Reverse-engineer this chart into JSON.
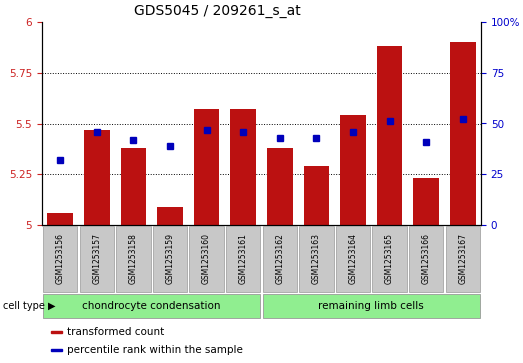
{
  "title": "GDS5045 / 209261_s_at",
  "samples": [
    "GSM1253156",
    "GSM1253157",
    "GSM1253158",
    "GSM1253159",
    "GSM1253160",
    "GSM1253161",
    "GSM1253162",
    "GSM1253163",
    "GSM1253164",
    "GSM1253165",
    "GSM1253166",
    "GSM1253167"
  ],
  "red_values": [
    5.06,
    5.47,
    5.38,
    5.09,
    5.57,
    5.57,
    5.38,
    5.29,
    5.54,
    5.88,
    5.23,
    5.9
  ],
  "blue_values_pct": [
    32,
    46,
    42,
    39,
    47,
    46,
    43,
    43,
    46,
    51,
    41,
    52
  ],
  "ylim_left": [
    5.0,
    6.0
  ],
  "ylim_right": [
    0,
    100
  ],
  "yticks_left": [
    5.0,
    5.25,
    5.5,
    5.75,
    6.0
  ],
  "yticks_right": [
    0,
    25,
    50,
    75,
    100
  ],
  "ytick_labels_left": [
    "5",
    "5.25",
    "5.5",
    "5.75",
    "6"
  ],
  "ytick_labels_right": [
    "0",
    "25",
    "50",
    "75",
    "100%"
  ],
  "cell_types": [
    "chondrocyte condensation",
    "remaining limb cells"
  ],
  "cell_type_split": 6,
  "bar_color": "#BB1111",
  "dot_color": "#0000BB",
  "sample_box_color": "#C8C8C8",
  "cell_box_color": "#90EE90",
  "left_tick_color": "#CC2222",
  "right_tick_color": "#0000CC",
  "legend_items": [
    "transformed count",
    "percentile rank within the sample"
  ],
  "legend_colors": [
    "#BB1111",
    "#0000BB"
  ],
  "title_fontsize": 10,
  "tick_fontsize": 7.5,
  "label_fontsize": 7.5,
  "legend_fontsize": 7.5
}
